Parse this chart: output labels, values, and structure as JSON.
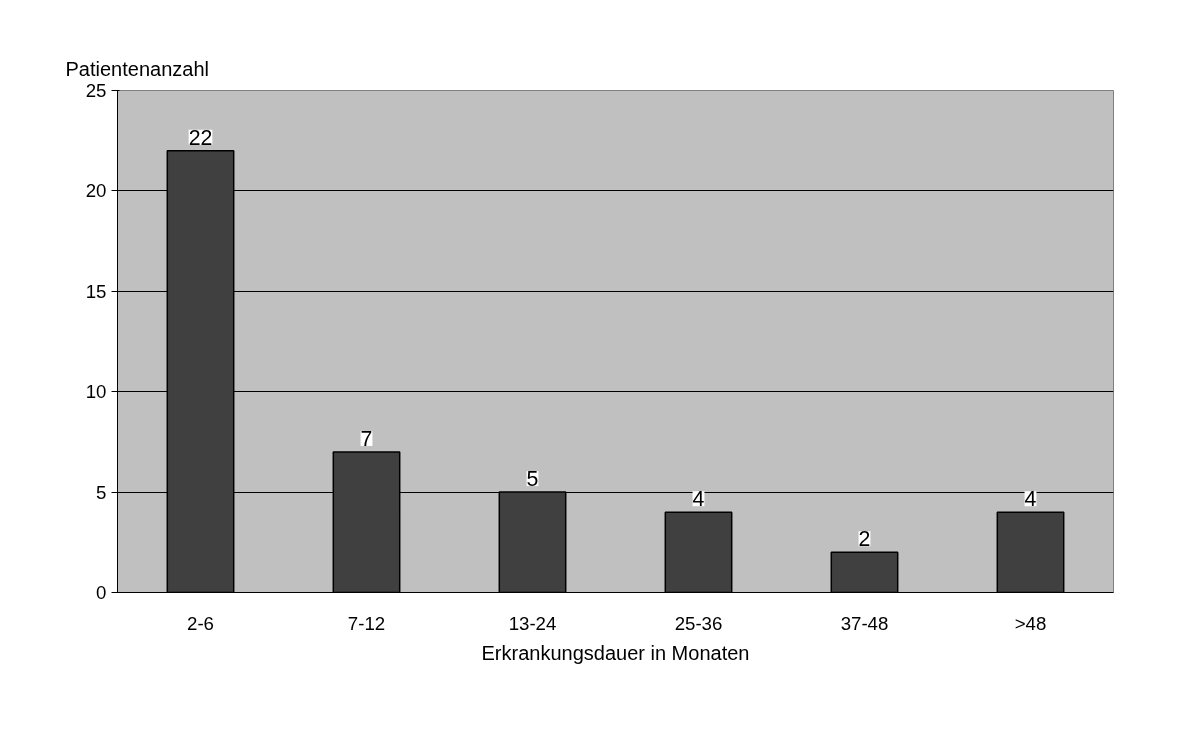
{
  "chart_data": {
    "type": "bar",
    "ylabel": "Patientenanzahl",
    "xlabel": "Erkrankungsdauer in Monaten",
    "categories": [
      "2-6",
      "7-12",
      "13-24",
      "25-36",
      "37-48",
      ">48"
    ],
    "values": [
      22,
      7,
      5,
      4,
      2,
      4
    ],
    "color": "#404040",
    "ylim": [
      0,
      25
    ],
    "yticks": [
      0,
      5,
      10,
      15,
      20,
      25
    ],
    "grid": "y",
    "data_labels": true
  }
}
